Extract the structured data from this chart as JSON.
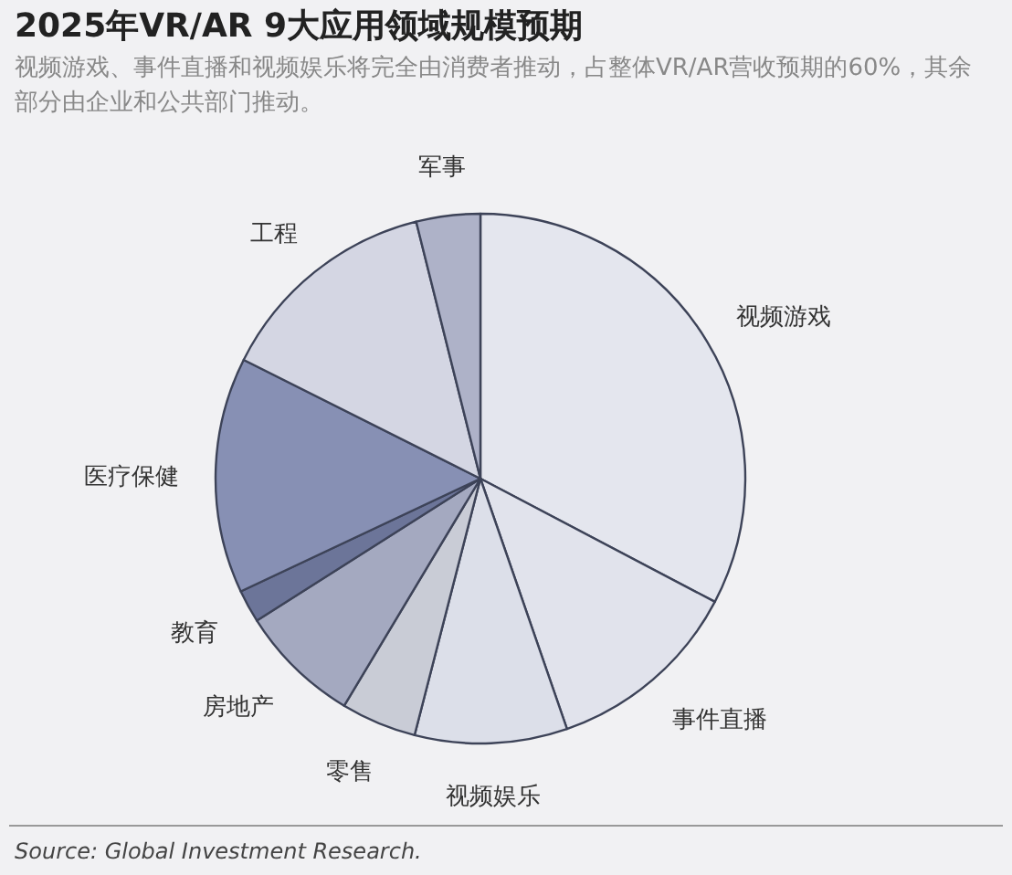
{
  "chart_data": {
    "type": "pie",
    "title": "2025年VR/AR 9大应用领域规模预期",
    "subtitle": "视频游戏、事件直播和视频娱乐将完全由消费者推动，占整体VR/AR营收预期的60%，其余部分由企业和公共部门推动。",
    "categories": [
      "视频游戏",
      "事件直播",
      "视频娱乐",
      "零售",
      "房地产",
      "教育",
      "医疗保健",
      "工程",
      "军事"
    ],
    "values": [
      32.7,
      12.0,
      9.3,
      4.6,
      7.4,
      2.0,
      14.4,
      13.7,
      3.9
    ],
    "colors": [
      "#e4e6ee",
      "#e1e3ec",
      "#dcdfe9",
      "#c9ccd6",
      "#a4a9c0",
      "#6c7599",
      "#8790b4",
      "#d4d6e3",
      "#aeb2c8"
    ],
    "annotations": [
      "Source: Global Investment Research."
    ]
  }
}
